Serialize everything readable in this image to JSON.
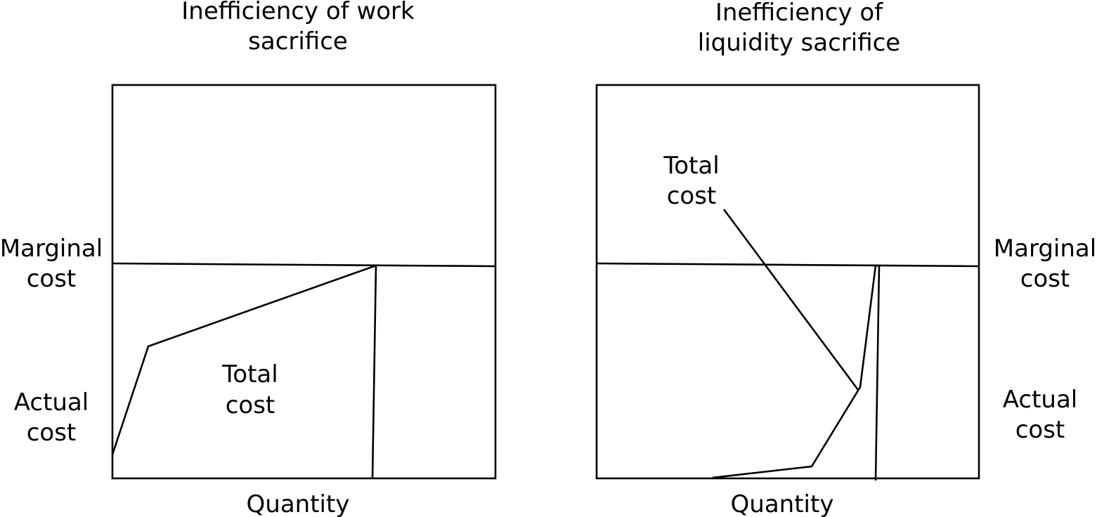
{
  "colors": {
    "ink": "#000000",
    "background": "#ffffff"
  },
  "left_panel": {
    "title": [
      "Inefficiency of work",
      "sacrifice"
    ],
    "marginal_cost_label": [
      "Marginal",
      "cost"
    ],
    "actual_cost_label": [
      "Actual",
      "cost"
    ],
    "total_cost_label": [
      "Total",
      "cost"
    ],
    "x_axis_label": "Quantity"
  },
  "right_panel": {
    "title": [
      "Inefficiency of",
      "liquidity sacrifice"
    ],
    "marginal_cost_label": [
      "Marginal",
      "cost"
    ],
    "actual_cost_label": [
      "Actual",
      "cost"
    ],
    "total_cost_label": [
      "Total",
      "cost"
    ],
    "x_axis_label": "Quantity"
  }
}
